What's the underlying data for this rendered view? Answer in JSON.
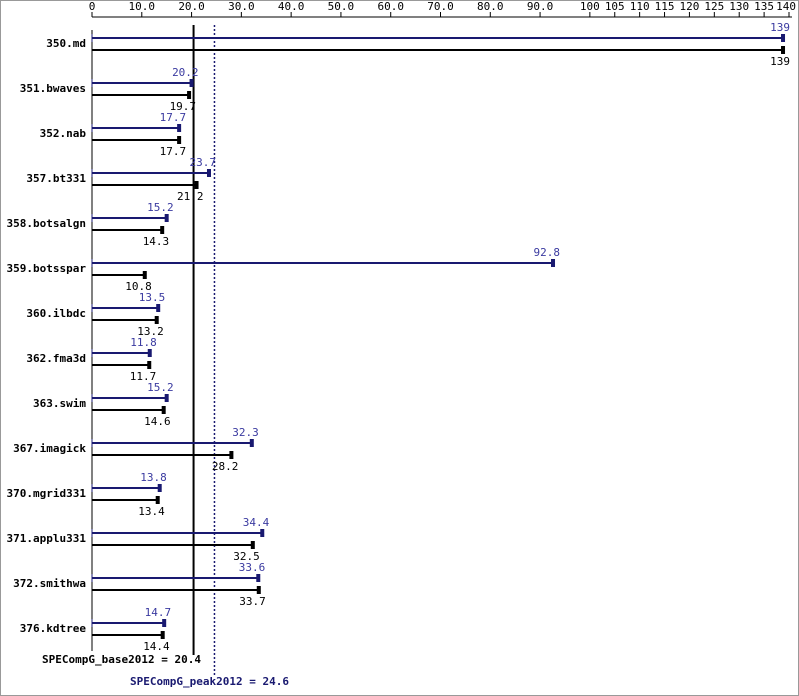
{
  "chart_data": {
    "type": "bar",
    "orientation": "horizontal",
    "categories": [
      "350.md",
      "351.bwaves",
      "352.nab",
      "357.bt331",
      "358.botsalgn",
      "359.botsspar",
      "360.ilbdc",
      "362.fma3d",
      "363.swim",
      "367.imagick",
      "370.mgrid331",
      "371.applu331",
      "372.smithwa",
      "376.kdtree"
    ],
    "series": [
      {
        "name": "peak",
        "color": "#191970",
        "values": [
          139,
          20.2,
          17.7,
          23.7,
          15.2,
          92.8,
          13.5,
          11.8,
          15.2,
          32.3,
          13.8,
          34.4,
          33.6,
          14.7
        ]
      },
      {
        "name": "base",
        "color": "#000000",
        "values": [
          139,
          19.7,
          17.7,
          21.2,
          14.3,
          10.8,
          13.2,
          11.7,
          14.6,
          28.2,
          13.4,
          32.5,
          33.7,
          14.4
        ]
      }
    ],
    "xlim": [
      0,
      140
    ],
    "xticks": [
      0,
      {
        "value": 10,
        "label": "10.0"
      },
      {
        "value": 20,
        "label": "20.0"
      },
      {
        "value": 30,
        "label": "30.0"
      },
      {
        "value": 40,
        "label": "40.0"
      },
      {
        "value": 50,
        "label": "50.0"
      },
      {
        "value": 60,
        "label": "60.0"
      },
      {
        "value": 70,
        "label": "70.0"
      },
      {
        "value": 80,
        "label": "80.0"
      },
      {
        "value": 90,
        "label": "90.0"
      },
      100,
      105,
      110,
      115,
      120,
      125,
      130,
      135,
      140
    ],
    "reference_lines": [
      {
        "label": "SPECompG_base2012 = 20.4",
        "value": 20.4,
        "color": "#000000",
        "style": "solid"
      },
      {
        "label": "SPECompG_peak2012 = 24.6",
        "value": 24.6,
        "color": "#191970",
        "style": "dotted"
      }
    ]
  }
}
